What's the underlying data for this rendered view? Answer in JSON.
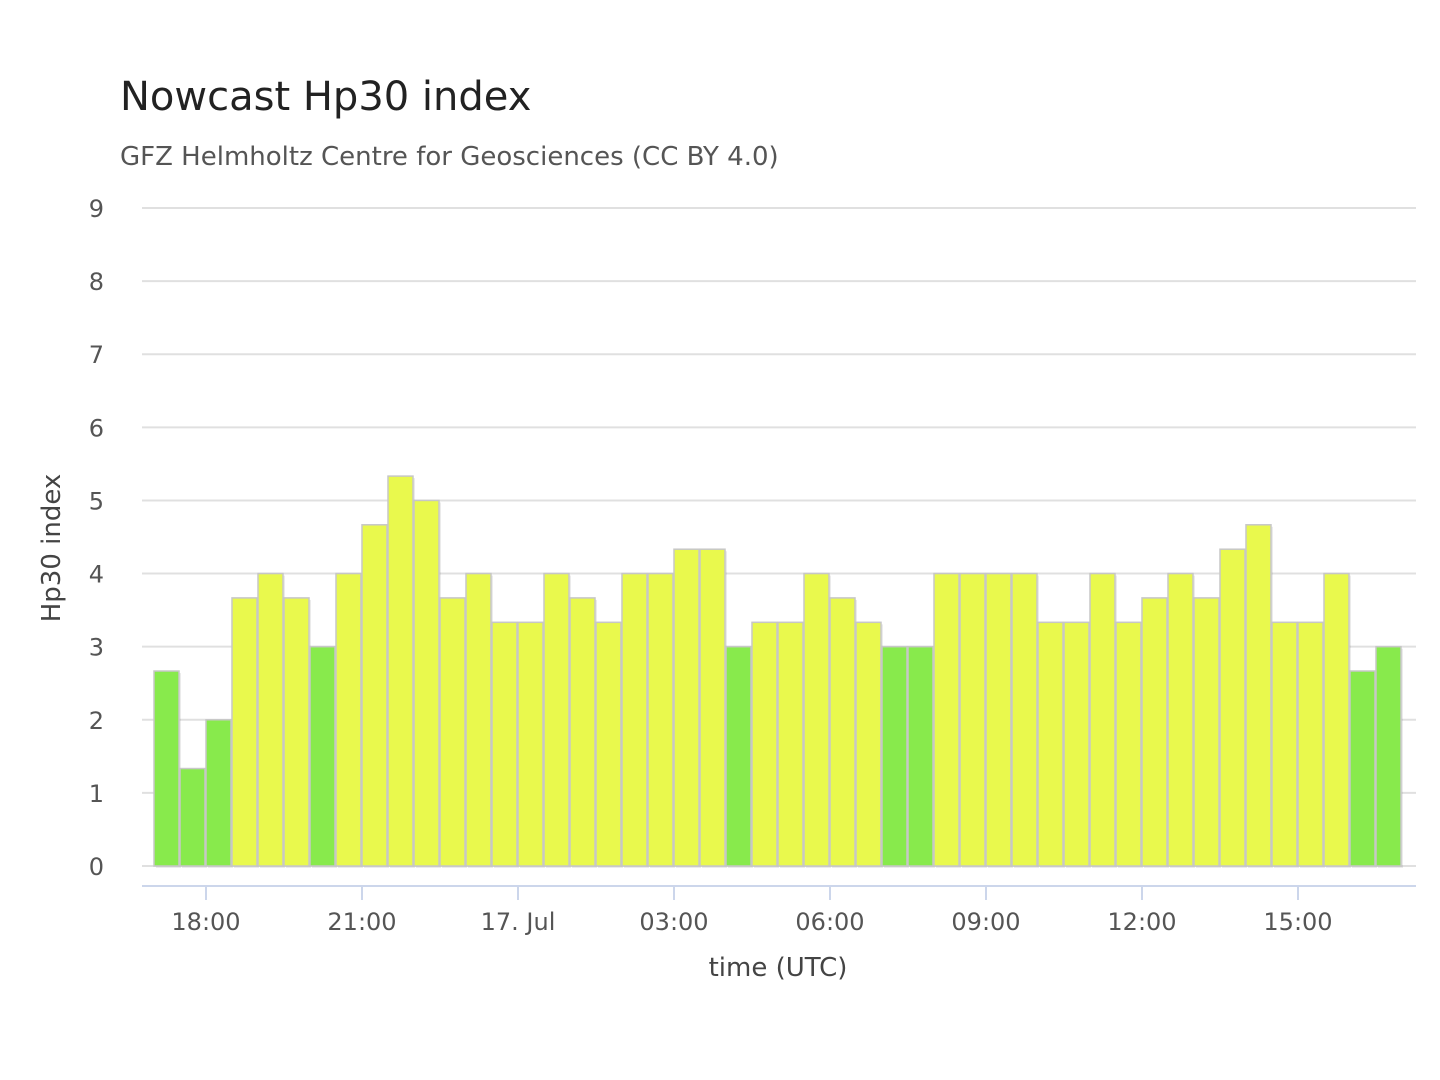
{
  "chart_data": {
    "type": "bar",
    "title": "Nowcast Hp30 index",
    "subtitle": "GFZ Helmholtz Centre for Geosciences (CC BY 4.0)",
    "xlabel": "time (UTC)",
    "ylabel": "Hp30 index",
    "ylim": [
      0,
      9
    ],
    "yticks": [
      "0",
      "1",
      "2",
      "3",
      "4",
      "5",
      "6",
      "7",
      "8",
      "9"
    ],
    "x_start": "16. Jul 17:00",
    "x_interval_minutes": 30,
    "xticks": [
      {
        "label": "18:00",
        "slot": 2
      },
      {
        "label": "21:00",
        "slot": 8
      },
      {
        "label": "17. Jul",
        "slot": 14
      },
      {
        "label": "03:00",
        "slot": 20
      },
      {
        "label": "06:00",
        "slot": 26
      },
      {
        "label": "09:00",
        "slot": 32
      },
      {
        "label": "12:00",
        "slot": 38
      },
      {
        "label": "15:00",
        "slot": 44
      }
    ],
    "values": [
      2.667,
      1.333,
      2.0,
      3.667,
      4.0,
      3.667,
      3.0,
      4.0,
      4.667,
      5.333,
      5.0,
      3.667,
      4.0,
      3.333,
      3.333,
      4.0,
      3.667,
      3.333,
      4.0,
      4.0,
      4.333,
      4.333,
      3.0,
      3.333,
      3.333,
      4.0,
      3.667,
      3.333,
      3.0,
      3.0,
      4.0,
      4.0,
      4.0,
      4.0,
      3.333,
      3.333,
      4.0,
      3.333,
      3.667,
      4.0,
      3.667,
      4.333,
      4.667,
      3.333,
      3.333,
      4.0,
      2.667,
      3.0
    ],
    "colors": {
      "low": "#88ea4c",
      "mid": "#e9f94d",
      "bar_border": "#c7c7c7",
      "grid": "#e0e0e0",
      "axis": "#ccd6eb"
    },
    "color_threshold": 3.333,
    "grid": true,
    "legend": "none"
  }
}
